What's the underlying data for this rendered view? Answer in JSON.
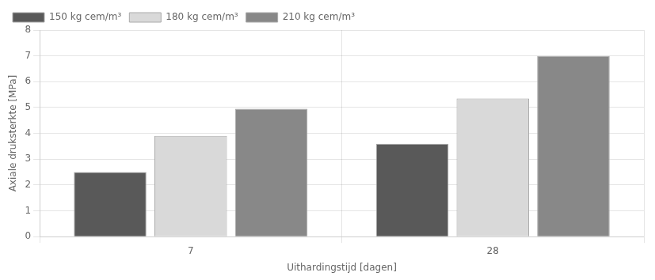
{
  "chart_data": {
    "type": "bar",
    "categories": [
      "7",
      "28"
    ],
    "series": [
      {
        "name": "150 kg cem/m³",
        "color": "#595959",
        "values": [
          2.5,
          3.6
        ]
      },
      {
        "name": "180 kg cem/m³",
        "color": "#d9d9d9",
        "values": [
          3.9,
          5.35
        ]
      },
      {
        "name": "210 kg cem/m³",
        "color": "#888888",
        "values": [
          4.95,
          7.0
        ]
      }
    ],
    "xlabel": "Uithardingstijd [dagen]",
    "ylabel": "Axiale druksterkte [MPa]",
    "ylim": [
      0,
      8
    ],
    "yticks": [
      0,
      1,
      2,
      3,
      4,
      5,
      6,
      7,
      8
    ],
    "grid": true,
    "legend": "upper left"
  }
}
